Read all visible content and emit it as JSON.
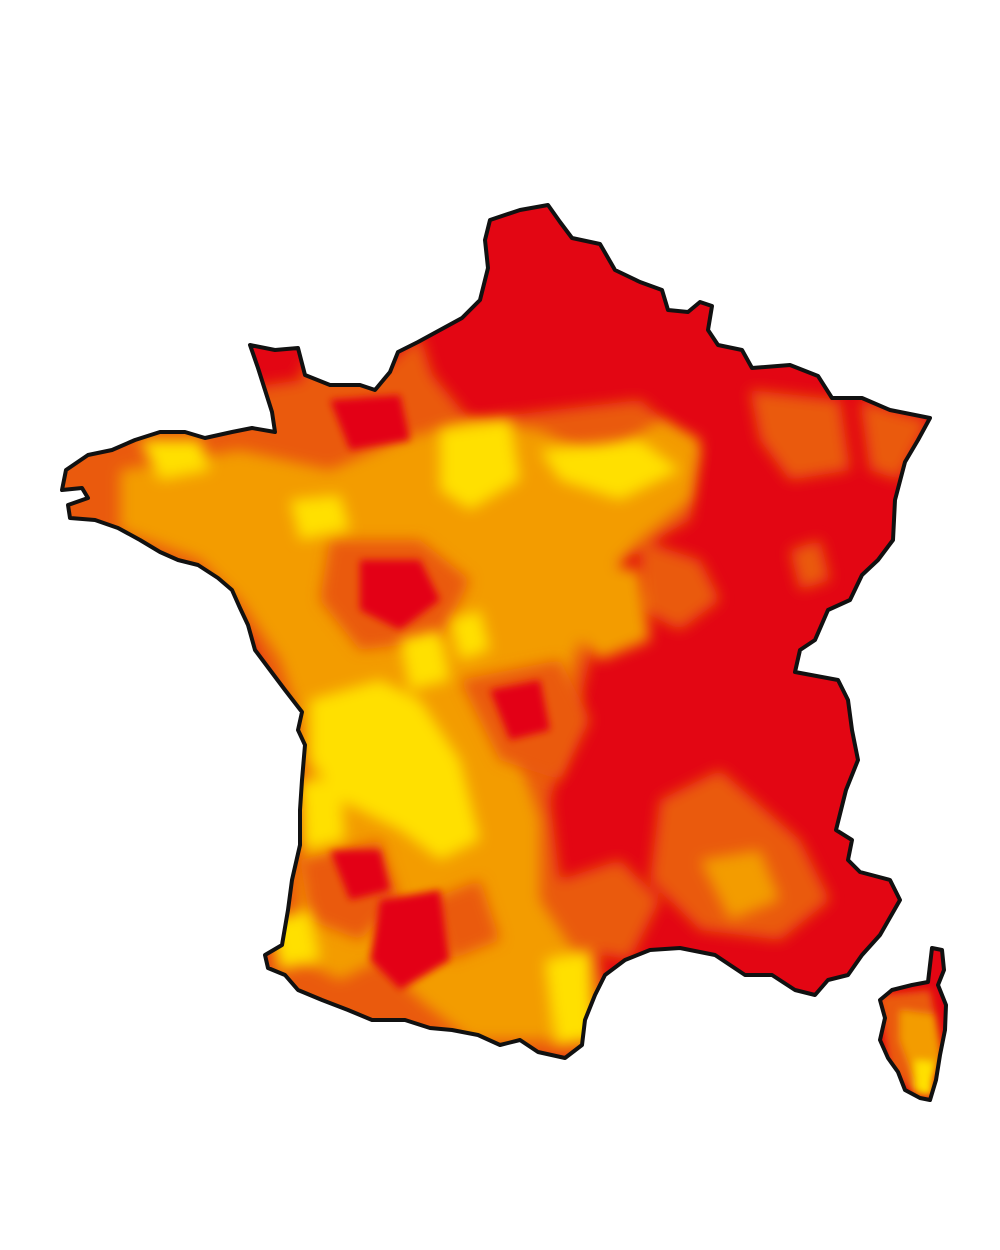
{
  "map": {
    "subject": "France",
    "regions": [
      "mainland",
      "corsica"
    ],
    "colors": {
      "background": "#ffffff",
      "outline": "#111111",
      "level_1": "#e30613",
      "level_2": "#ea5a0c",
      "level_3": "#f39c00",
      "level_4": "#ffe000"
    }
  }
}
